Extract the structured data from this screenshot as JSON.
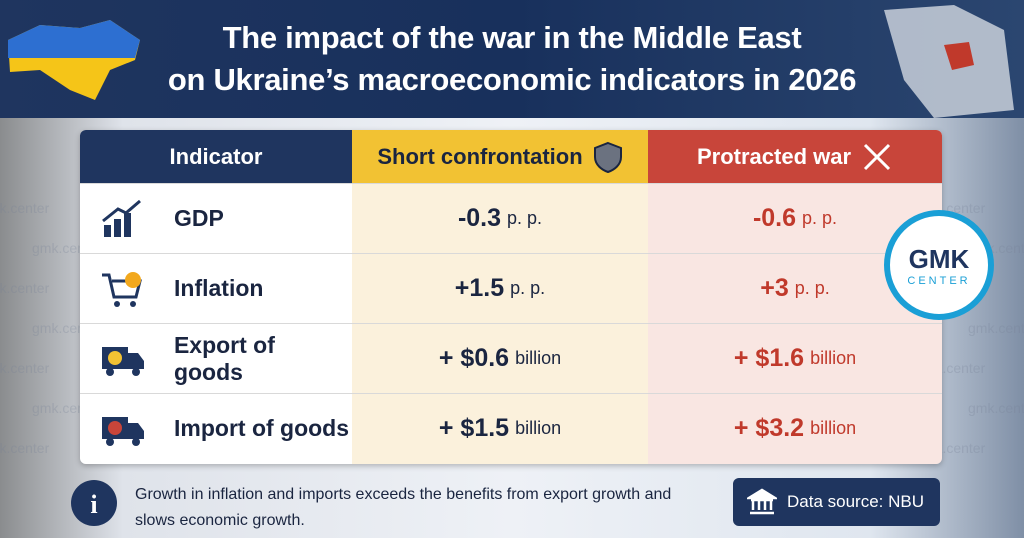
{
  "header": {
    "title_lines": [
      "The impact of the war in the Middle East",
      "on Ukraine’s macroeconomic indicators in 2026"
    ]
  },
  "table": {
    "columns": [
      "Indicator",
      "Short confrontation",
      "Protracted war"
    ],
    "rows": [
      {
        "indicator": "GDP",
        "short": {
          "value": "-0.3",
          "unit": "p. p."
        },
        "protracted": {
          "value": "-0.6",
          "unit": "p. p."
        }
      },
      {
        "indicator": "Inflation",
        "short": {
          "value": "+1.5",
          "unit": "p. p."
        },
        "protracted": {
          "value": "+3",
          "unit": "p. p."
        }
      },
      {
        "indicator": "Export of goods",
        "short": {
          "value": "+ $0.6",
          "unit": "billion"
        },
        "protracted": {
          "value": "+ $1.6",
          "unit": "billion"
        }
      },
      {
        "indicator": "Import of goods",
        "short": {
          "value": "+ $1.5",
          "unit": "billion"
        },
        "protracted": {
          "value": "+ $3.2",
          "unit": "billion"
        }
      }
    ]
  },
  "note": "Growth in inflation and imports exceeds the benefits from export growth and slows economic growth.",
  "source": "Data source: NBU",
  "logo": {
    "top": "GMK",
    "bottom": "CENTER"
  },
  "watermark": "gmk.center"
}
